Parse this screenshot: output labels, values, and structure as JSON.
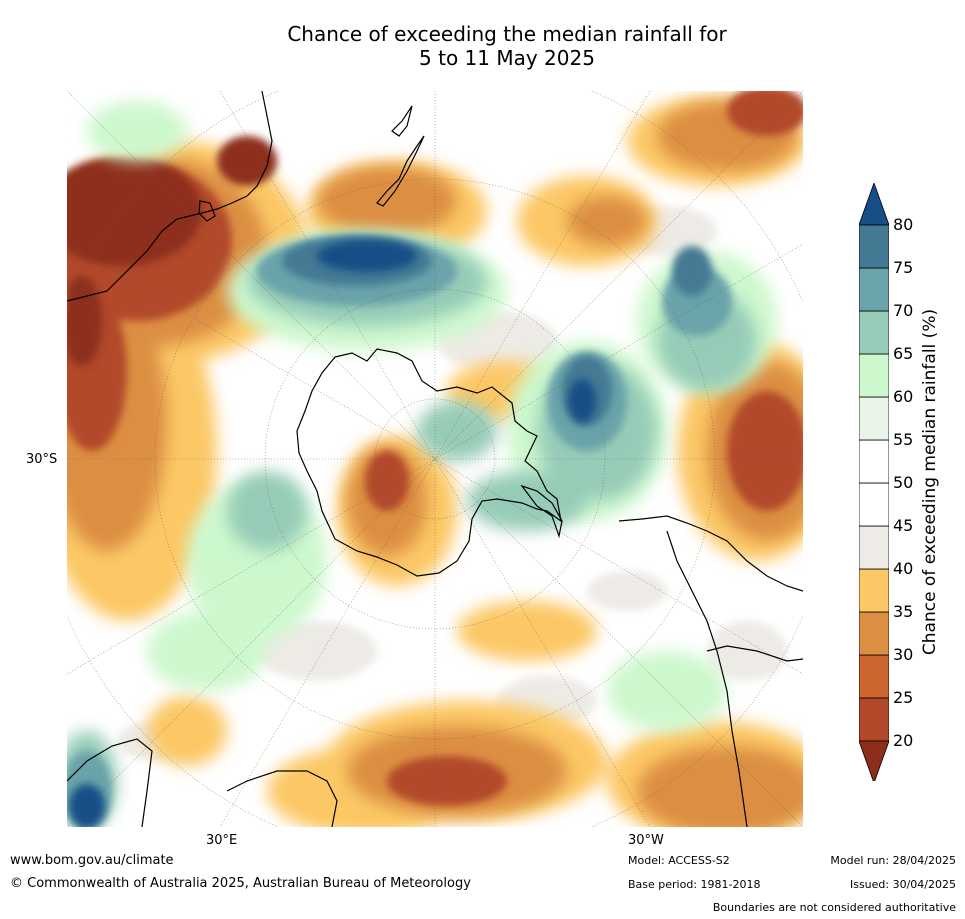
{
  "title_line1": "Chance of exceeding the median rainfall for",
  "title_line2": "5 to 11 May 2025",
  "axes": {
    "lat_label": "30°S",
    "lon_label_left": "30°E",
    "lon_label_right": "30°W"
  },
  "colorbar": {
    "title": "Chance of exceeding median rainfall (%)",
    "ticks": [
      "20",
      "25",
      "30",
      "35",
      "40",
      "45",
      "50",
      "55",
      "60",
      "65",
      "70",
      "75",
      "80"
    ],
    "colors": [
      "#8e2e1a",
      "#b2492a",
      "#cc6530",
      "#dc8f42",
      "#fcc865",
      "#eeebe6",
      "#ffffff",
      "#ffffff",
      "#eaf5ea",
      "#cdf8ce",
      "#96ccb7",
      "#6aa3aa",
      "#447994",
      "#154f86"
    ]
  },
  "footer": {
    "website": "www.bom.gov.au/climate",
    "copyright": "© Commonwealth of Australia 2025, Australian Bureau of Meteorology",
    "model": "Model: ACCESS-S2",
    "base_period": "Base period: 1981-2018",
    "model_run": "Model run: 28/04/2025",
    "issued": "Issued: 30/04/2025",
    "disclaimer": "Boundaries are not considered authoritative"
  }
}
